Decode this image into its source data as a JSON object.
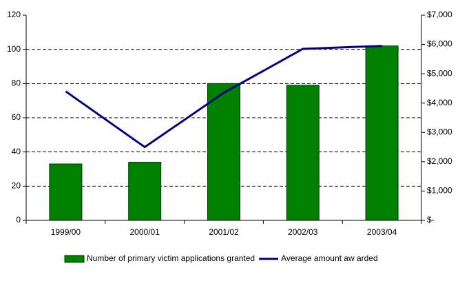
{
  "chart_data": {
    "type": "bar",
    "categories": [
      "1999/00",
      "2000/01",
      "2001/02",
      "2002/03",
      "2003/04"
    ],
    "series": [
      {
        "name": "Number of primary victim applications granted",
        "type": "bar",
        "color": "#008000",
        "values": [
          33,
          34,
          80,
          79,
          102
        ]
      },
      {
        "name": "Average amount aw arded",
        "type": "line",
        "axis": "y2",
        "color": "#000080",
        "values": [
          4400,
          2500,
          4350,
          5850,
          5950
        ]
      }
    ],
    "ylim": [
      0,
      120
    ],
    "yticks": [
      0,
      20,
      40,
      60,
      80,
      100,
      120
    ],
    "y2lim": [
      0,
      7000
    ],
    "y2ticks": [
      {
        "value": 0,
        "label": "$-"
      },
      {
        "value": 1000,
        "label": "$1,000"
      },
      {
        "value": 2000,
        "label": "$2,000"
      },
      {
        "value": 3000,
        "label": "$3,000"
      },
      {
        "value": 4000,
        "label": "$4,000"
      },
      {
        "value": 5000,
        "label": "$5,000"
      },
      {
        "value": 6000,
        "label": "$6,000"
      },
      {
        "value": 7000,
        "label": "$7,000"
      }
    ],
    "grid": true
  }
}
